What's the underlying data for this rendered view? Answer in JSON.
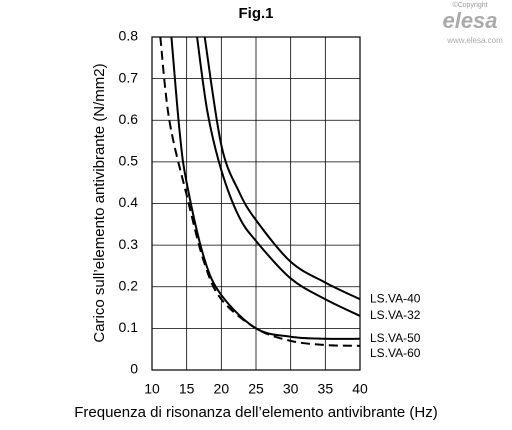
{
  "chart_data": {
    "type": "line",
    "title": "Fig.1",
    "x_label": "Frequenza di risonanza dell’elemento antivibrante (Hz)",
    "y_label": "Carico sull’elemento antivibrante (N/mm2)",
    "xlim": [
      10,
      40
    ],
    "xticks": [
      10,
      15,
      20,
      25,
      30,
      35,
      40
    ],
    "ylim": [
      0,
      0.8
    ],
    "yticks": [
      0,
      0.1,
      0.2,
      0.3,
      0.4,
      0.5,
      0.6,
      0.7,
      0.8
    ],
    "grid": true,
    "series": [
      {
        "name": "LS.VA-40",
        "color": "#000000",
        "line_style": "solid",
        "x": [
          17.6,
          20,
          22.5,
          25,
          30,
          35,
          40
        ],
        "values": [
          0.8,
          0.54,
          0.43,
          0.36,
          0.26,
          0.21,
          0.17
        ]
      },
      {
        "name": "LS.VA-32",
        "color": "#000000",
        "line_style": "solid",
        "x": [
          16.5,
          18,
          20,
          22.5,
          25,
          30,
          35,
          40
        ],
        "values": [
          0.8,
          0.62,
          0.48,
          0.37,
          0.31,
          0.22,
          0.17,
          0.13
        ]
      },
      {
        "name": "LS.VA-50",
        "color": "#000000",
        "line_style": "solid",
        "x": [
          12.8,
          14,
          15,
          17.5,
          20,
          25,
          30,
          35,
          40
        ],
        "values": [
          0.8,
          0.57,
          0.45,
          0.27,
          0.18,
          0.1,
          0.08,
          0.075,
          0.075
        ]
      },
      {
        "name": "LS.VA-60",
        "color": "#000000",
        "line_style": "dashed",
        "x": [
          11.2,
          12.5,
          15,
          17.5,
          20,
          25,
          30,
          35,
          40
        ],
        "values": [
          0.8,
          0.6,
          0.42,
          0.26,
          0.17,
          0.1,
          0.07,
          0.06,
          0.058
        ]
      }
    ]
  },
  "watermark": {
    "copyright": "©Copyright",
    "brand": "elesa",
    "url": "www.elesa.com"
  }
}
